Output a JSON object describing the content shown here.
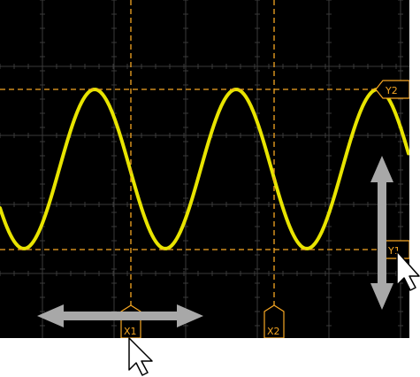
{
  "colors": {
    "screen_background": "#000000",
    "grid": "#3a3a3a",
    "trace": "#e8e400",
    "cursor": "#f5a623",
    "drag_arrow": "#a8a8a8",
    "pointer": "#ffffff"
  },
  "waveform": {
    "shape": "sine",
    "visible_cycles": 2.6
  },
  "cursors": {
    "x1": {
      "label": "X1"
    },
    "x2": {
      "label": "X2"
    },
    "y1": {
      "label": "Y1"
    },
    "y2": {
      "label": "Y2"
    }
  },
  "icons": {
    "horizontal_drag": "double-headed-horizontal-arrow",
    "vertical_drag": "double-headed-vertical-arrow",
    "pointer": "mouse-pointer"
  }
}
